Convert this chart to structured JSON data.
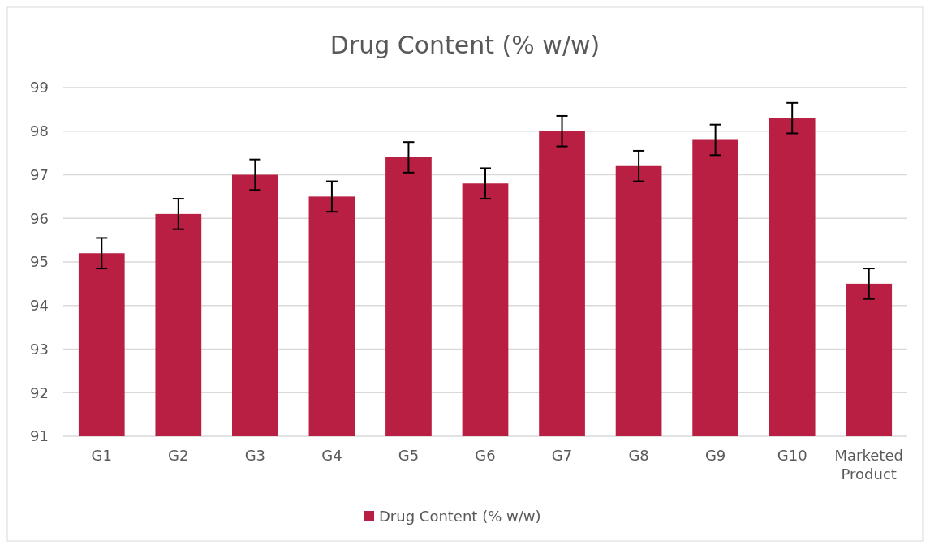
{
  "chart_data": {
    "type": "bar",
    "title": "Drug Content (% w/w)",
    "categories": [
      "G1",
      "G2",
      "G3",
      "G4",
      "G5",
      "G6",
      "G7",
      "G8",
      "G9",
      "G10",
      "Marketed Product"
    ],
    "series": [
      {
        "name": "Drug Content (% w/w)",
        "color": "#b91f42",
        "values": [
          95.2,
          96.1,
          97.0,
          96.5,
          97.4,
          96.8,
          98.0,
          97.2,
          97.8,
          98.3,
          94.5
        ],
        "errors": [
          0.35,
          0.35,
          0.35,
          0.35,
          0.35,
          0.35,
          0.35,
          0.35,
          0.35,
          0.35,
          0.35
        ]
      }
    ],
    "ylim": [
      91,
      99
    ],
    "yticks": [
      91,
      92,
      93,
      94,
      95,
      96,
      97,
      98,
      99
    ],
    "grid": "y",
    "legend": "bottom"
  }
}
